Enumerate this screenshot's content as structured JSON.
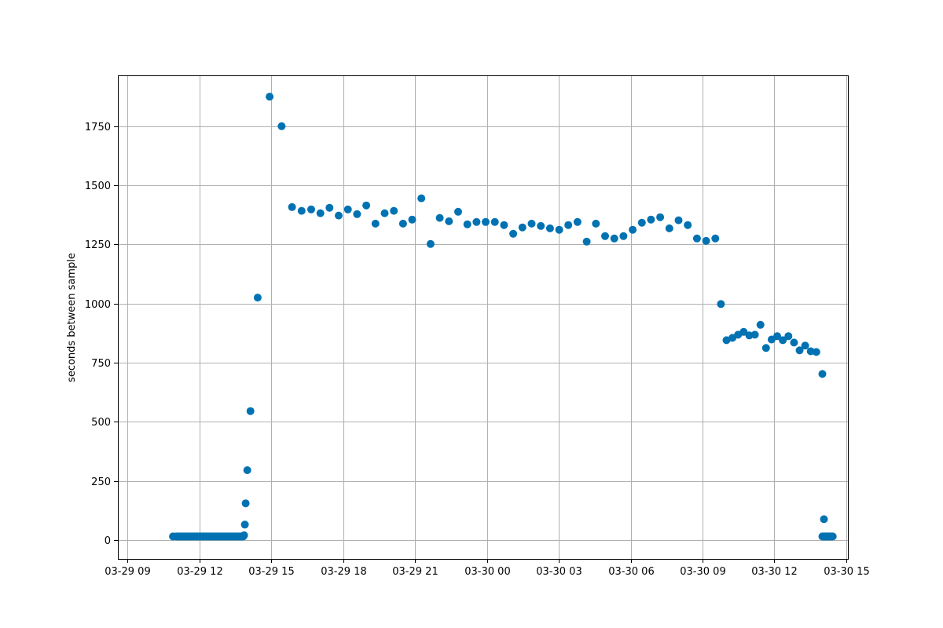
{
  "chart_data": {
    "type": "scatter",
    "title": "",
    "xlabel": "",
    "ylabel": "seconds between sample",
    "grid": true,
    "marker_color": "#0072b2",
    "x_ticks": [
      "03-29 09",
      "03-29 12",
      "03-29 15",
      "03-29 18",
      "03-29 21",
      "03-30 00",
      "03-30 03",
      "03-30 06",
      "03-30 09",
      "03-30 12",
      "03-30 15"
    ],
    "y_ticks": [
      0,
      250,
      500,
      750,
      1000,
      1250,
      1500,
      1750
    ],
    "xlim": [
      "03-29 08:36",
      "03-30 15:06"
    ],
    "ylim": [
      -80,
      1965
    ],
    "series": [
      {
        "values": [
          [
            "03-29 10:54",
            15
          ],
          [
            "03-29 13:52",
            20
          ],
          [
            "03-29 13:54",
            65
          ],
          [
            "03-29 13:56",
            155
          ],
          [
            "03-29 14:00",
            295
          ],
          [
            "03-29 14:08",
            545
          ],
          [
            "03-29 14:26",
            1025
          ],
          [
            "03-29 14:56",
            1875
          ],
          [
            "03-29 15:26",
            1750
          ],
          [
            "03-29 15:52",
            1408
          ],
          [
            "03-29 16:16",
            1392
          ],
          [
            "03-29 16:40",
            1398
          ],
          [
            "03-29 17:03",
            1382
          ],
          [
            "03-29 17:26",
            1405
          ],
          [
            "03-29 17:49",
            1372
          ],
          [
            "03-29 18:12",
            1398
          ],
          [
            "03-29 18:35",
            1378
          ],
          [
            "03-29 18:58",
            1415
          ],
          [
            "03-29 19:21",
            1338
          ],
          [
            "03-29 19:44",
            1382
          ],
          [
            "03-29 20:07",
            1392
          ],
          [
            "03-29 20:30",
            1338
          ],
          [
            "03-29 20:53",
            1355
          ],
          [
            "03-29 21:16",
            1445
          ],
          [
            "03-29 21:39",
            1252
          ],
          [
            "03-29 22:02",
            1362
          ],
          [
            "03-29 22:25",
            1348
          ],
          [
            "03-29 22:48",
            1388
          ],
          [
            "03-29 23:11",
            1335
          ],
          [
            "03-29 23:34",
            1345
          ],
          [
            "03-29 23:57",
            1345
          ],
          [
            "03-30 00:20",
            1345
          ],
          [
            "03-30 00:43",
            1332
          ],
          [
            "03-30 01:06",
            1295
          ],
          [
            "03-30 01:29",
            1322
          ],
          [
            "03-30 01:52",
            1338
          ],
          [
            "03-30 02:15",
            1328
          ],
          [
            "03-30 02:38",
            1318
          ],
          [
            "03-30 03:01",
            1312
          ],
          [
            "03-30 03:24",
            1332
          ],
          [
            "03-30 03:47",
            1345
          ],
          [
            "03-30 04:10",
            1262
          ],
          [
            "03-30 04:33",
            1338
          ],
          [
            "03-30 04:56",
            1285
          ],
          [
            "03-30 05:19",
            1275
          ],
          [
            "03-30 05:42",
            1285
          ],
          [
            "03-30 06:05",
            1312
          ],
          [
            "03-30 06:28",
            1342
          ],
          [
            "03-30 06:51",
            1355
          ],
          [
            "03-30 07:14",
            1365
          ],
          [
            "03-30 07:37",
            1318
          ],
          [
            "03-30 08:00",
            1352
          ],
          [
            "03-30 08:23",
            1332
          ],
          [
            "03-30 08:46",
            1275
          ],
          [
            "03-30 09:09",
            1265
          ],
          [
            "03-30 09:32",
            1275
          ],
          [
            "03-30 09:46",
            998
          ],
          [
            "03-30 10:00",
            845
          ],
          [
            "03-30 10:15",
            855
          ],
          [
            "03-30 10:29",
            868
          ],
          [
            "03-30 10:43",
            880
          ],
          [
            "03-30 10:57",
            865
          ],
          [
            "03-30 11:11",
            868
          ],
          [
            "03-30 11:25",
            910
          ],
          [
            "03-30 11:39",
            812
          ],
          [
            "03-30 11:53",
            848
          ],
          [
            "03-30 12:07",
            862
          ],
          [
            "03-30 12:21",
            845
          ],
          [
            "03-30 12:35",
            862
          ],
          [
            "03-30 12:49",
            835
          ],
          [
            "03-30 13:03",
            802
          ],
          [
            "03-30 13:17",
            822
          ],
          [
            "03-30 13:31",
            798
          ],
          [
            "03-30 13:45",
            795
          ],
          [
            "03-30 14:00",
            702
          ],
          [
            "03-30 14:04",
            88
          ],
          [
            "03-30 14:08",
            15
          ]
        ],
        "dense_runs": [
          {
            "x_from": "03-29 11:02",
            "x_to": "03-29 13:50",
            "step_minutes": 3,
            "value": 15
          },
          {
            "x_from": "03-30 14:00",
            "x_to": "03-30 14:26",
            "step_minutes": 2,
            "value": 15
          }
        ]
      }
    ]
  }
}
